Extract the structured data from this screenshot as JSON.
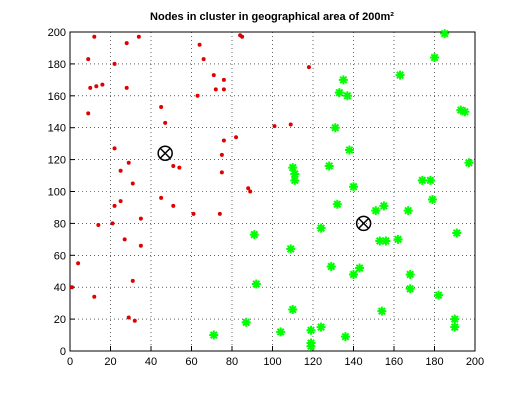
{
  "chart_data": {
    "type": "scatter",
    "title": "Nodes in cluster in geographical area of 200m²",
    "xlim": [
      0,
      200
    ],
    "ylim": [
      0,
      200
    ],
    "xticks": [
      0,
      20,
      40,
      60,
      80,
      100,
      120,
      140,
      160,
      180,
      200
    ],
    "yticks": [
      0,
      20,
      40,
      60,
      80,
      100,
      120,
      140,
      160,
      180,
      200
    ],
    "grid": true,
    "series": [
      {
        "color": "#e00000",
        "marker": "dot",
        "x": [
          12,
          9,
          28,
          34,
          22,
          10,
          13,
          16,
          28,
          9,
          64,
          66,
          84,
          85,
          71,
          72,
          76,
          76,
          63,
          45,
          47,
          101,
          109,
          118,
          82,
          76,
          75,
          75,
          51,
          54,
          22,
          29,
          25,
          31,
          22,
          25,
          14,
          21,
          27,
          35,
          35,
          45,
          51,
          61,
          74,
          88,
          89,
          4,
          1,
          12,
          31,
          29,
          32
        ],
        "values": [
          197,
          183,
          193,
          197,
          180,
          165,
          166,
          167,
          165,
          149,
          192,
          183,
          198,
          197,
          173,
          164,
          164,
          170,
          160,
          153,
          143,
          141,
          142,
          178,
          134,
          132,
          123,
          112,
          116,
          115,
          127,
          118,
          113,
          105,
          91,
          94,
          79,
          80,
          70,
          83,
          66,
          96,
          91,
          86,
          86,
          102,
          100,
          55,
          40,
          34,
          44,
          21,
          19
        ]
      },
      {
        "color": "#00ff00",
        "marker": "star",
        "x": [
          185,
          180,
          163,
          135,
          133,
          137,
          195,
          193,
          197,
          131,
          138,
          110,
          111,
          111,
          128,
          140,
          132,
          174,
          178,
          179,
          151,
          155,
          167,
          153,
          156,
          162,
          124,
          109,
          91,
          191,
          140,
          143,
          129,
          168,
          168,
          182,
          92,
          110,
          154,
          190,
          190,
          87,
          71,
          104,
          119,
          124,
          119,
          119,
          136
        ],
        "values": [
          199,
          184,
          173,
          170,
          162,
          160,
          150,
          151,
          118,
          140,
          126,
          115,
          111,
          107,
          116,
          103,
          92,
          107,
          107,
          95,
          88,
          91,
          88,
          69,
          69,
          70,
          77,
          64,
          73,
          74,
          48,
          52,
          53,
          48,
          39,
          35,
          42,
          26,
          25,
          20,
          15,
          18,
          10,
          12,
          13,
          15,
          5,
          3,
          9
        ]
      },
      {
        "color": "#000000",
        "marker": "centroid",
        "x": [
          47,
          145
        ],
        "values": [
          124,
          80
        ]
      }
    ]
  }
}
